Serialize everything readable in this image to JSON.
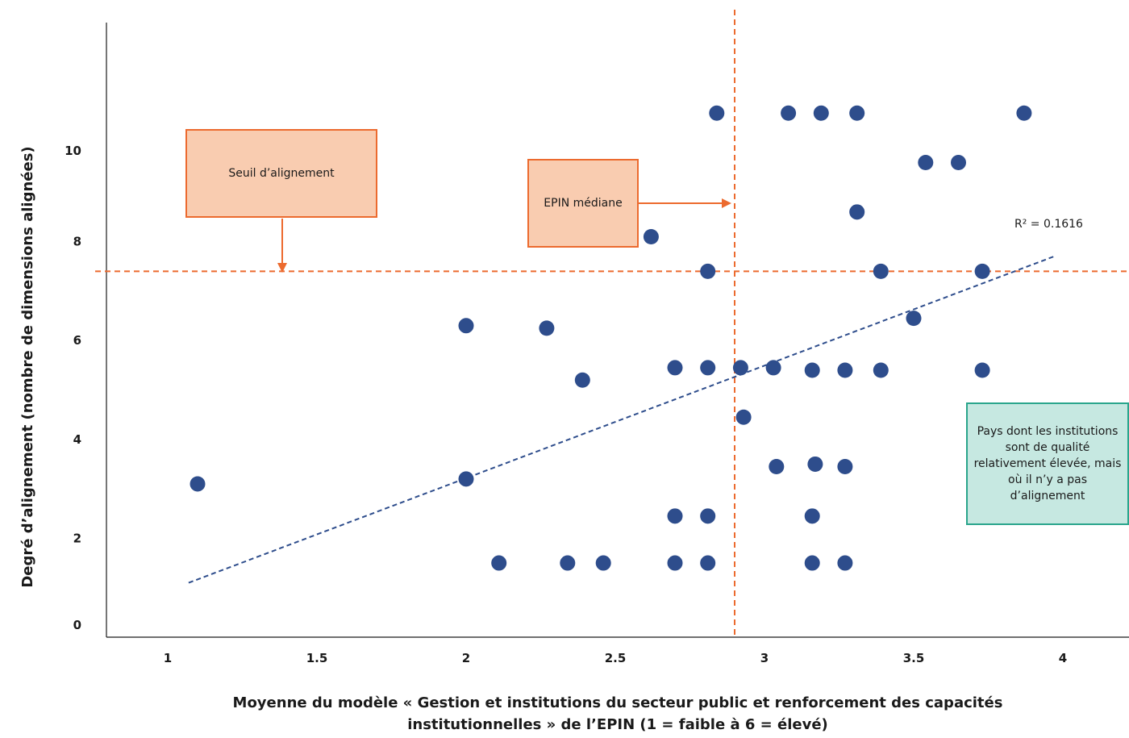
{
  "chart_data": {
    "type": "scatter",
    "title": "",
    "xlabel_lines": [
      "Moyenne du modèle « Gestion et institutions du secteur public et renforcement des capacités",
      "institutionnelles » de l’EPIN (1 = faible à 6 = élevé)"
    ],
    "ylabel": "Degré d’alignement (nombre de dimensions alignées)",
    "xlim": [
      0.8,
      4.3
    ],
    "ylim": [
      0,
      12.5
    ],
    "x_ticks": [
      "1",
      "1.5",
      "2",
      "2.5",
      "3",
      "3.5",
      "4"
    ],
    "y_ticks": [
      "0",
      "2",
      "4",
      "6",
      "8",
      "10"
    ],
    "points": [
      {
        "x": 1.1,
        "y": 3.1
      },
      {
        "x": 2.0,
        "y": 6.3
      },
      {
        "x": 2.0,
        "y": 3.2
      },
      {
        "x": 2.11,
        "y": 1.5
      },
      {
        "x": 2.27,
        "y": 6.25
      },
      {
        "x": 2.34,
        "y": 1.5
      },
      {
        "x": 2.39,
        "y": 5.2
      },
      {
        "x": 2.46,
        "y": 1.5
      },
      {
        "x": 2.62,
        "y": 8.1
      },
      {
        "x": 2.7,
        "y": 5.45
      },
      {
        "x": 2.7,
        "y": 2.45
      },
      {
        "x": 2.7,
        "y": 1.5
      },
      {
        "x": 2.81,
        "y": 7.4
      },
      {
        "x": 2.81,
        "y": 5.45
      },
      {
        "x": 2.81,
        "y": 2.45
      },
      {
        "x": 2.81,
        "y": 1.5
      },
      {
        "x": 2.84,
        "y": 10.6
      },
      {
        "x": 2.92,
        "y": 5.45
      },
      {
        "x": 2.93,
        "y": 4.45
      },
      {
        "x": 3.03,
        "y": 5.45
      },
      {
        "x": 3.04,
        "y": 3.45
      },
      {
        "x": 3.08,
        "y": 10.6
      },
      {
        "x": 3.16,
        "y": 5.4
      },
      {
        "x": 3.16,
        "y": 2.45
      },
      {
        "x": 3.16,
        "y": 1.5
      },
      {
        "x": 3.17,
        "y": 3.5
      },
      {
        "x": 3.19,
        "y": 10.6
      },
      {
        "x": 3.27,
        "y": 5.4
      },
      {
        "x": 3.27,
        "y": 3.45
      },
      {
        "x": 3.27,
        "y": 1.5
      },
      {
        "x": 3.31,
        "y": 10.6
      },
      {
        "x": 3.31,
        "y": 8.6
      },
      {
        "x": 3.39,
        "y": 7.4
      },
      {
        "x": 3.39,
        "y": 5.4
      },
      {
        "x": 3.5,
        "y": 6.45
      },
      {
        "x": 3.54,
        "y": 9.6
      },
      {
        "x": 3.65,
        "y": 9.6
      },
      {
        "x": 3.73,
        "y": 7.4
      },
      {
        "x": 3.73,
        "y": 5.4
      },
      {
        "x": 3.87,
        "y": 10.6
      }
    ],
    "trendline": {
      "x": [
        1.07,
        3.97
      ],
      "y": [
        1.1,
        7.7
      ]
    },
    "r_squared_label": "R² = 0.1616",
    "threshold_y": 7.4,
    "median_x": 2.9,
    "colors": {
      "points": "#2e4d8c",
      "reference_lines": "#ec6a2e",
      "trendline": "#2e4d8c",
      "green_box": "#2aa58c"
    }
  },
  "annotations": {
    "seuil_label": "Seuil d’alignement",
    "median_label": "EPIN médiane",
    "green_box_text": "Pays dont les institutions sont de qualité relativement élevée, mais où il n’y a pas d’alignement"
  }
}
